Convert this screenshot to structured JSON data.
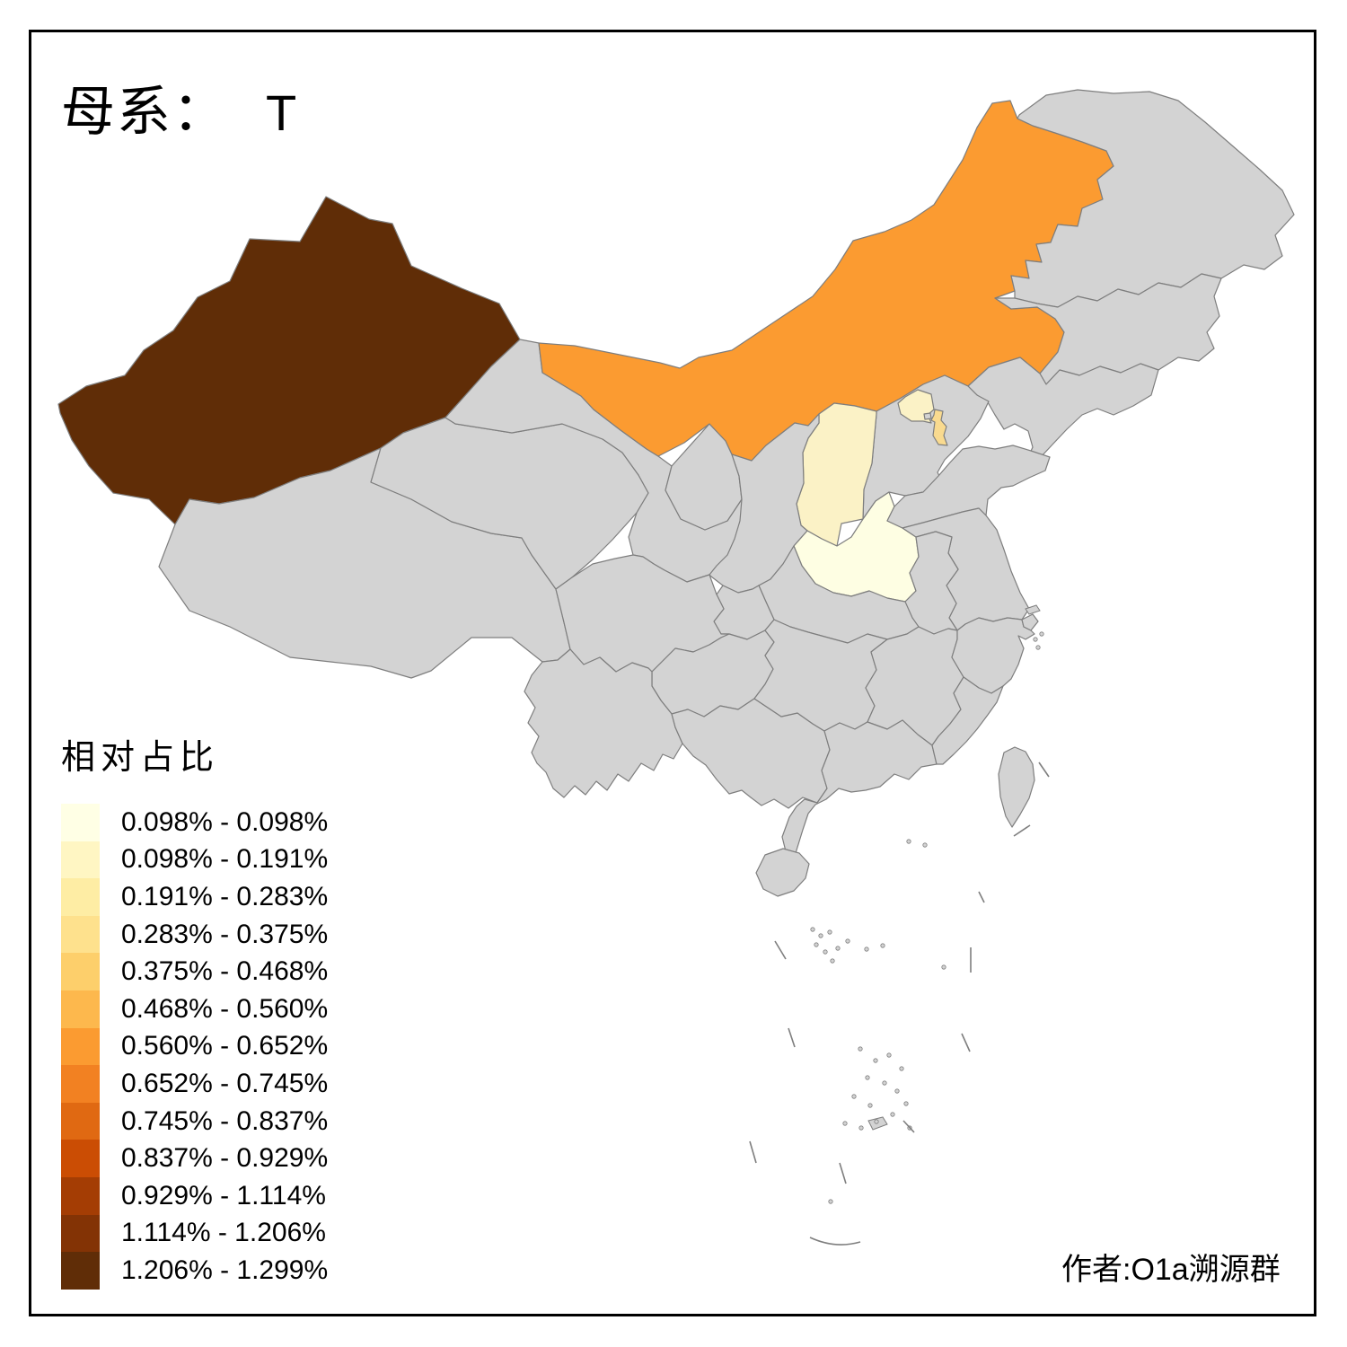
{
  "title": {
    "prefix": "母系：",
    "haplogroup": "T"
  },
  "legend": {
    "title": "相对占比",
    "items": [
      {
        "label": "0.098% - 0.098%",
        "color": "#FFFFE5"
      },
      {
        "label": "0.098% - 0.191%",
        "color": "#FFF6C3"
      },
      {
        "label": "0.191% - 0.283%",
        "color": "#FEEDA4"
      },
      {
        "label": "0.283% - 0.375%",
        "color": "#FEE18D"
      },
      {
        "label": "0.375% - 0.468%",
        "color": "#FDCF6B"
      },
      {
        "label": "0.468% - 0.560%",
        "color": "#FDB84D"
      },
      {
        "label": "0.560% - 0.652%",
        "color": "#FB9B31"
      },
      {
        "label": "0.652% - 0.745%",
        "color": "#F28122"
      },
      {
        "label": "0.745% - 0.837%",
        "color": "#E06912"
      },
      {
        "label": "0.837% - 0.929%",
        "color": "#CB4D04"
      },
      {
        "label": "0.929% - 1.114%",
        "color": "#A43D04"
      },
      {
        "label": "1.114% - 1.206%",
        "color": "#833305"
      },
      {
        "label": "1.206% - 1.299%",
        "color": "#602D07"
      }
    ]
  },
  "attribution": "作者:O1a溯源群",
  "map": {
    "background": "#FFFFFF",
    "no_data_fill": "#D3D3D3",
    "border_color": "#7E7E7E",
    "frame_color": "#000000",
    "provinces": {
      "xinjiang": {
        "name": "新疆",
        "fill": "#602D07",
        "range": "1.206% - 1.299%"
      },
      "inner-mongolia": {
        "name": "内蒙古",
        "fill": "#FB9B31",
        "range": "0.560% - 0.652%"
      },
      "shanxi": {
        "name": "山西",
        "fill": "#FBF2C6",
        "range": "0.098% - 0.191%"
      },
      "henan": {
        "name": "河南",
        "fill": "#FEFEE3",
        "range": "0.098% - 0.098%"
      },
      "beijing": {
        "name": "北京",
        "fill": "#FBF2C6",
        "range": "0.098% - 0.191%"
      },
      "tianjin": {
        "name": "天津",
        "fill": "#F9DA8F",
        "range": "0.283% - 0.375%"
      }
    }
  },
  "chart_data": {
    "type": "choropleth",
    "title": "母系： T",
    "legend_title": "相对占比",
    "legend_position": "bottom-left",
    "bins": [
      "0.098% - 0.098%",
      "0.098% - 0.191%",
      "0.191% - 0.283%",
      "0.283% - 0.375%",
      "0.375% - 0.468%",
      "0.468% - 0.560%",
      "0.560% - 0.652%",
      "0.652% - 0.745%",
      "0.745% - 0.837%",
      "0.837% - 0.929%",
      "0.929% - 1.114%",
      "1.114% - 1.206%",
      "1.206% - 1.299%"
    ],
    "regions_with_data": [
      {
        "name": "新疆 (Xinjiang)",
        "value_range": "1.206% - 1.299%",
        "bin": 13
      },
      {
        "name": "内蒙古 (Inner Mongolia)",
        "value_range": "0.560% - 0.652%",
        "bin": 7
      },
      {
        "name": "天津 (Tianjin)",
        "value_range": "0.283% - 0.375%",
        "bin": 4
      },
      {
        "name": "北京 (Beijing)",
        "value_range": "0.098% - 0.191%",
        "bin": 2
      },
      {
        "name": "山西 (Shanxi)",
        "value_range": "0.098% - 0.191%",
        "bin": 2
      },
      {
        "name": "河南 (Henan)",
        "value_range": "0.098% - 0.098%",
        "bin": 1
      }
    ],
    "regions_no_data": [
      "黑龙江",
      "吉林",
      "辽宁",
      "河北",
      "山东",
      "陕西",
      "宁夏",
      "甘肃",
      "青海",
      "西藏",
      "四川",
      "重庆",
      "湖北",
      "安徽",
      "江苏",
      "上海",
      "浙江",
      "江西",
      "湖南",
      "福建",
      "广东",
      "广西",
      "贵州",
      "云南",
      "海南",
      "台湾"
    ]
  }
}
